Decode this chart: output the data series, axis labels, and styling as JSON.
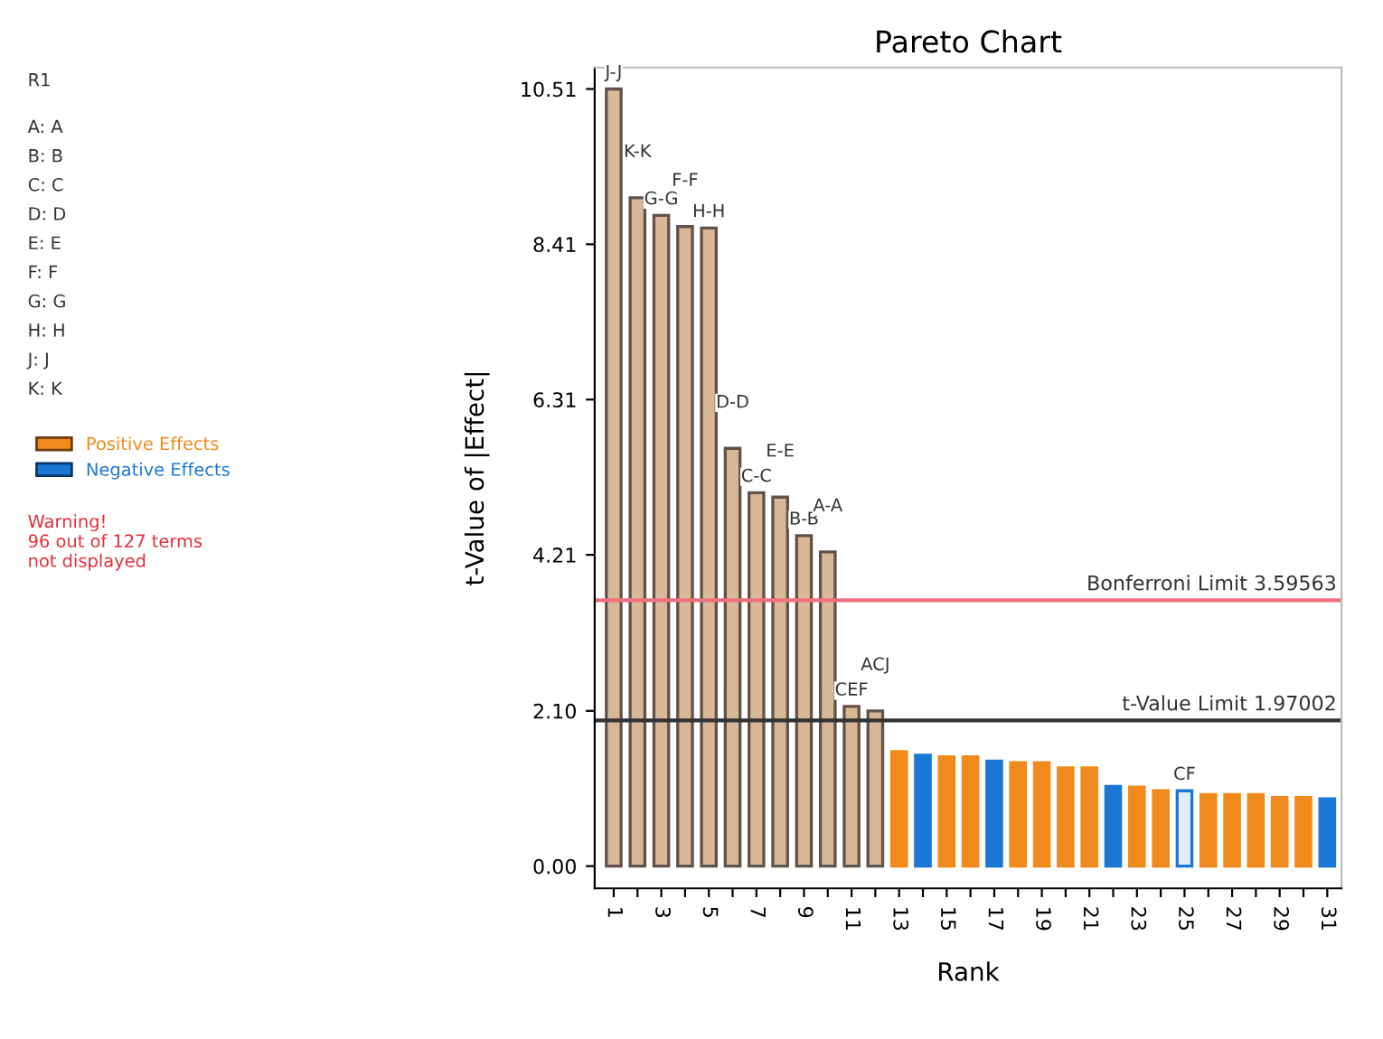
{
  "chart_data": {
    "type": "bar",
    "title": "Pareto Chart",
    "xlabel": "Rank",
    "ylabel": "t-Value of |Effect|",
    "categories": [
      "1",
      null,
      "3",
      null,
      "5",
      null,
      "7",
      null,
      "9",
      null,
      "11",
      null,
      "13",
      null,
      "15",
      null,
      "17",
      null,
      "19",
      null,
      "21",
      null,
      "23",
      null,
      "25",
      null,
      "27",
      null,
      "29",
      null,
      "31"
    ],
    "series": [
      {
        "name": "Positive Effects",
        "color": "#f08a1c",
        "values": [
          10.51,
          9.04,
          8.8,
          8.65,
          8.63,
          5.65,
          5.05,
          4.99,
          4.47,
          4.25,
          2.16,
          2.1,
          1.55,
          null,
          1.48,
          1.48,
          null,
          1.4,
          1.4,
          1.33,
          1.33,
          null,
          1.07,
          1.02,
          null,
          0.97,
          0.97,
          0.97,
          0.93,
          0.93,
          null
        ],
        "colors": [
          "#d8b896",
          "#d8b896",
          "#d8b896",
          "#d8b896",
          "#d8b896",
          "#d8b896",
          "#d8b896",
          "#d8b896",
          "#d8b896",
          "#d8b896",
          "#d8b896",
          "#d8b896",
          "#f08a1c",
          null,
          "#f08a1c",
          "#f08a1c",
          null,
          "#f08a1c",
          "#f08a1c",
          "#f08a1c",
          "#f08a1c",
          null,
          "#f08a1c",
          "#f08a1c",
          null,
          "#f08a1c",
          "#f08a1c",
          "#f08a1c",
          "#f08a1c",
          "#f08a1c",
          null
        ]
      },
      {
        "name": "Negative Effects",
        "color": "#1a78d4",
        "values": [
          null,
          null,
          null,
          null,
          null,
          null,
          null,
          null,
          null,
          null,
          null,
          null,
          null,
          1.5,
          null,
          null,
          1.42,
          null,
          null,
          null,
          null,
          1.08,
          null,
          null,
          1.02,
          null,
          null,
          null,
          null,
          null,
          0.91
        ],
        "colors": [
          null,
          null,
          null,
          null,
          null,
          null,
          null,
          null,
          null,
          null,
          null,
          null,
          null,
          "#1a78d4",
          null,
          null,
          "#1a78d4",
          null,
          null,
          null,
          null,
          "#1a78d4",
          null,
          null,
          "#e4eef9",
          null,
          null,
          null,
          null,
          null,
          "#1a78d4"
        ]
      }
    ],
    "value_labels": [
      "J-J",
      "K-K",
      "G-G",
      "F-F",
      "H-H",
      "D-D",
      "C-C",
      "E-E",
      "B-B",
      "A-A",
      "CEF",
      "ACJ",
      null,
      null,
      null,
      null,
      null,
      null,
      null,
      null,
      null,
      null,
      null,
      null,
      "CF",
      null,
      null,
      null,
      null,
      null,
      null
    ],
    "ylim": [
      -0.3,
      10.8
    ],
    "yticks": [
      {
        "value": 0,
        "label": "0.00"
      },
      {
        "value": 2.1,
        "label": "2.10"
      },
      {
        "value": 4.21,
        "label": "4.21"
      },
      {
        "value": 6.31,
        "label": "6.31"
      },
      {
        "value": 8.41,
        "label": "8.41"
      },
      {
        "value": 10.51,
        "label": "10.51"
      }
    ],
    "ref_lines": [
      {
        "axis": "y",
        "value": 3.59563,
        "label": "Bonferroni Limit 3.59563",
        "color": "#f07080"
      },
      {
        "axis": "y",
        "value": 1.97002,
        "label": "t-Value Limit 1.97002",
        "color": "#333333"
      }
    ],
    "legend": "left",
    "annotations": [
      "R1",
      "A: A",
      "B: B",
      "C: C",
      "D: D",
      "E: E",
      "F: F",
      "G: G",
      "H: H",
      "J: J",
      "K: K",
      "Warning!\n96 out of 127 terms\nnot displayed"
    ]
  }
}
